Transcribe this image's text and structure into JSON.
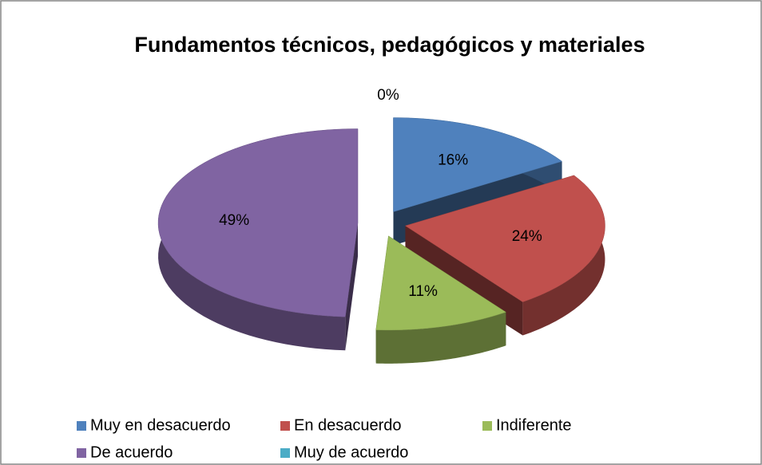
{
  "chart_data": {
    "type": "pie",
    "title": "Fundamentos técnicos, pedagógicos y materiales",
    "categories": [
      "Muy en desacuerdo",
      "En desacuerdo",
      "Indiferente",
      "De acuerdo",
      "Muy de acuerdo"
    ],
    "values": [
      16,
      24,
      11,
      49,
      0
    ],
    "value_labels": [
      "16%",
      "24%",
      "11%",
      "49%",
      "0%"
    ],
    "colors": [
      "#4f81bd",
      "#c0504d",
      "#9bbb59",
      "#8064a2",
      "#4bacc6"
    ],
    "legend": "bottom"
  }
}
